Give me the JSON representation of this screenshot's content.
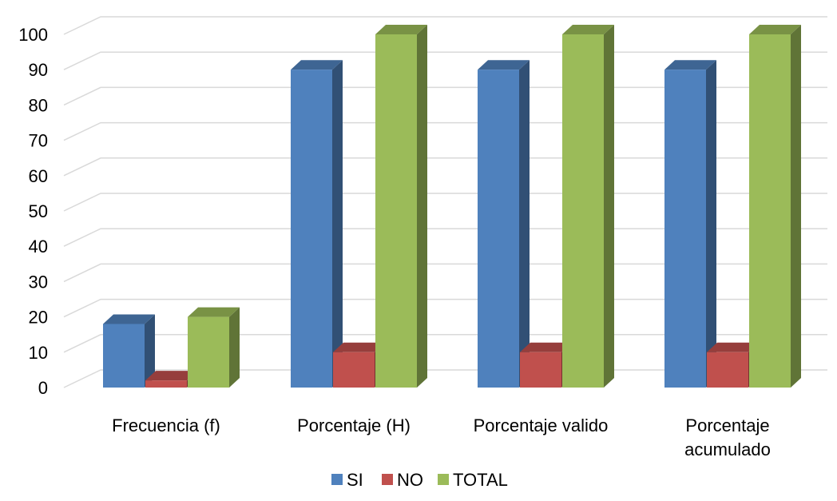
{
  "chart_data": {
    "type": "bar",
    "categories": [
      "Frecuencia (f)",
      "Porcentaje (H)",
      "Porcentaje valido",
      "Porcentaje acumulado"
    ],
    "series": [
      {
        "name": "SI",
        "values": [
          18,
          90,
          90,
          90
        ]
      },
      {
        "name": "NO",
        "values": [
          2,
          10,
          10,
          10
        ]
      },
      {
        "name": "TOTAL",
        "values": [
          20,
          100,
          100,
          100
        ]
      }
    ],
    "ylim": [
      0,
      100
    ],
    "yticks": [
      0,
      10,
      20,
      30,
      40,
      50,
      60,
      70,
      80,
      90,
      100
    ],
    "grid": true,
    "legend_position": "bottom",
    "style": "3d-clustered-column",
    "colors": {
      "SI": "#4f81bd",
      "NO": "#c0504d",
      "TOTAL": "#9bbb59"
    }
  }
}
